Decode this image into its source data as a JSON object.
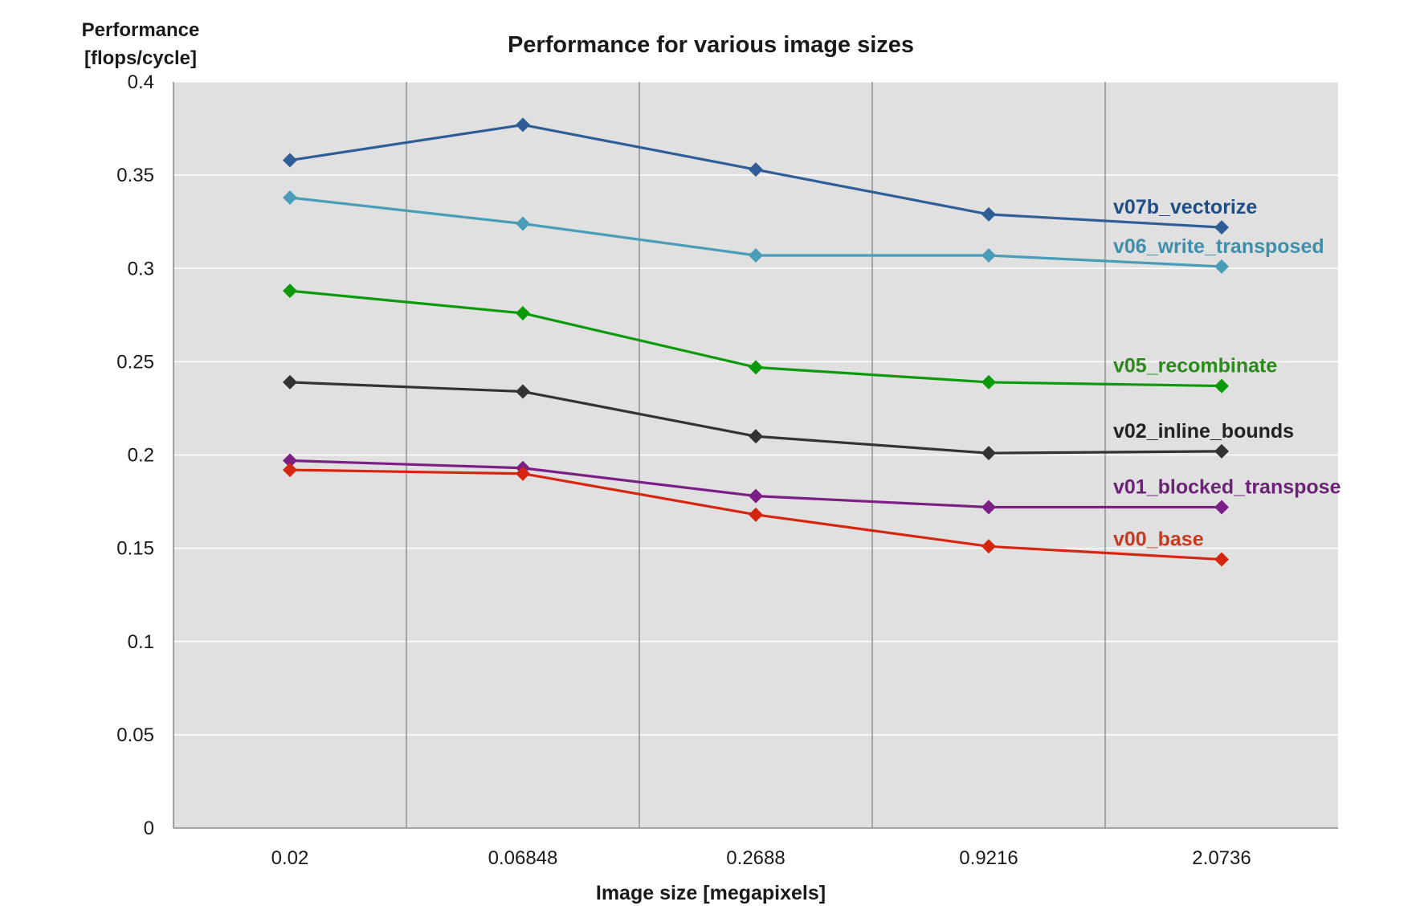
{
  "chart_data": {
    "type": "line",
    "title": "Performance for various image sizes",
    "ylabel_lines": [
      "Performance",
      "[flops/cycle]"
    ],
    "xlabel": "Image size [megapixels]",
    "categories": [
      "0.02",
      "0.06848",
      "0.2688",
      "0.9216",
      "2.0736"
    ],
    "ylim": [
      0,
      0.4
    ],
    "yticks": [
      0,
      0.05,
      0.1,
      0.15,
      0.2,
      0.25,
      0.3,
      0.35,
      0.4
    ],
    "ytick_labels": [
      "0",
      "0.05",
      "0.1",
      "0.15",
      "0.2",
      "0.25",
      "0.3",
      "0.35",
      "0.4"
    ],
    "grid": {
      "horizontal": true,
      "vertical_between_categories": true
    },
    "plot_background": "#e0e0e0",
    "marker": "diamond",
    "label_position": "right-end-of-line",
    "series": [
      {
        "name": "v07b_vectorize",
        "color": "#2e5e95",
        "label_color": "#1f4e86",
        "values": [
          0.358,
          0.377,
          0.353,
          0.329,
          0.322
        ]
      },
      {
        "name": "v06_write_transposed",
        "color": "#4a9db8",
        "label_color": "#3d8fab",
        "values": [
          0.338,
          0.324,
          0.307,
          0.307,
          0.301
        ]
      },
      {
        "name": "v05_recombinate",
        "color": "#0a9a0a",
        "label_color": "#2a8a1a",
        "values": [
          0.288,
          0.276,
          0.247,
          0.239,
          0.237
        ]
      },
      {
        "name": "v02_inline_bounds",
        "color": "#333333",
        "label_color": "#222222",
        "values": [
          0.239,
          0.234,
          0.21,
          0.201,
          0.202
        ]
      },
      {
        "name": "v01_blocked_transpose",
        "color": "#7b1f85",
        "label_color": "#6c2277",
        "values": [
          0.197,
          0.193,
          0.178,
          0.172,
          0.172
        ]
      },
      {
        "name": "v00_base",
        "color": "#d72610",
        "label_color": "#c73a22",
        "values": [
          0.192,
          0.19,
          0.168,
          0.151,
          0.144
        ]
      }
    ]
  }
}
